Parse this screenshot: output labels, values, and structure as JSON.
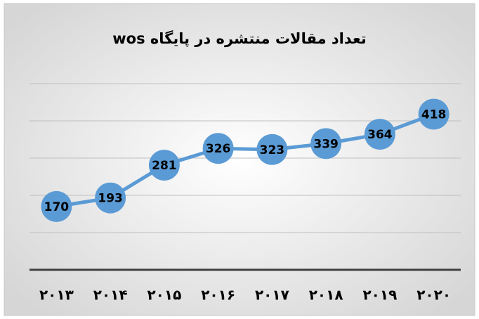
{
  "chart_data": {
    "type": "line",
    "title": "تعداد مقالات منتشره در پایگاه wos",
    "categories": [
      "۲۰۱۳",
      "۲۰۱۴",
      "۲۰۱۵",
      "۲۰۱۶",
      "۲۰۱۷",
      "۲۰۱۸",
      "۲۰۱۹",
      "۲۰۲۰"
    ],
    "values": [
      170,
      193,
      281,
      326,
      323,
      339,
      364,
      418
    ],
    "color": "#5b9bd5",
    "ylim": [
      0,
      500
    ],
    "yticks": [
      0,
      100,
      200,
      300,
      400,
      500
    ],
    "grid": true
  }
}
